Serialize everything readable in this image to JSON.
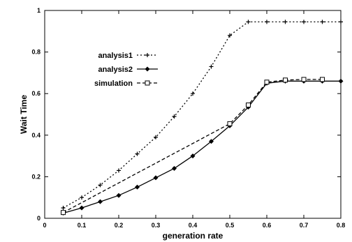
{
  "chart_data": {
    "type": "line",
    "xlabel": "generation rate",
    "ylabel": "Wait Time",
    "xlim": [
      0,
      0.8
    ],
    "ylim": [
      0,
      1
    ],
    "x_ticks": [
      "0",
      "0.1",
      "0.2",
      "0.3",
      "0.4",
      "0.5",
      "0.6",
      "0.7",
      "0.8"
    ],
    "y_ticks": [
      "0",
      "0.2",
      "0.4",
      "0.6",
      "0.8",
      "1"
    ],
    "grid": false,
    "legend_position": "upper-left",
    "series": [
      {
        "name": "analysis1",
        "style": "dotted",
        "marker": "plus",
        "x": [
          0.05,
          0.1,
          0.15,
          0.2,
          0.25,
          0.3,
          0.35,
          0.4,
          0.45,
          0.5,
          0.55,
          0.6,
          0.65,
          0.7,
          0.75,
          0.8
        ],
        "y": [
          0.05,
          0.1,
          0.16,
          0.23,
          0.31,
          0.39,
          0.49,
          0.6,
          0.73,
          0.88,
          0.945,
          0.945,
          0.945,
          0.945,
          0.945,
          0.945
        ]
      },
      {
        "name": "analysis2",
        "style": "solid",
        "marker": "diamond",
        "x": [
          0.05,
          0.1,
          0.15,
          0.2,
          0.25,
          0.3,
          0.35,
          0.4,
          0.45,
          0.5,
          0.55,
          0.6,
          0.65,
          0.7,
          0.75,
          0.8
        ],
        "y": [
          0.025,
          0.05,
          0.08,
          0.11,
          0.15,
          0.195,
          0.24,
          0.3,
          0.37,
          0.445,
          0.535,
          0.65,
          0.66,
          0.66,
          0.66,
          0.66
        ]
      },
      {
        "name": "simulation",
        "style": "dashed",
        "marker": "square",
        "x": [
          0.05,
          0.5,
          0.55,
          0.6,
          0.65,
          0.7,
          0.75
        ],
        "y": [
          0.028,
          0.455,
          0.545,
          0.655,
          0.665,
          0.668,
          0.668
        ]
      }
    ]
  }
}
